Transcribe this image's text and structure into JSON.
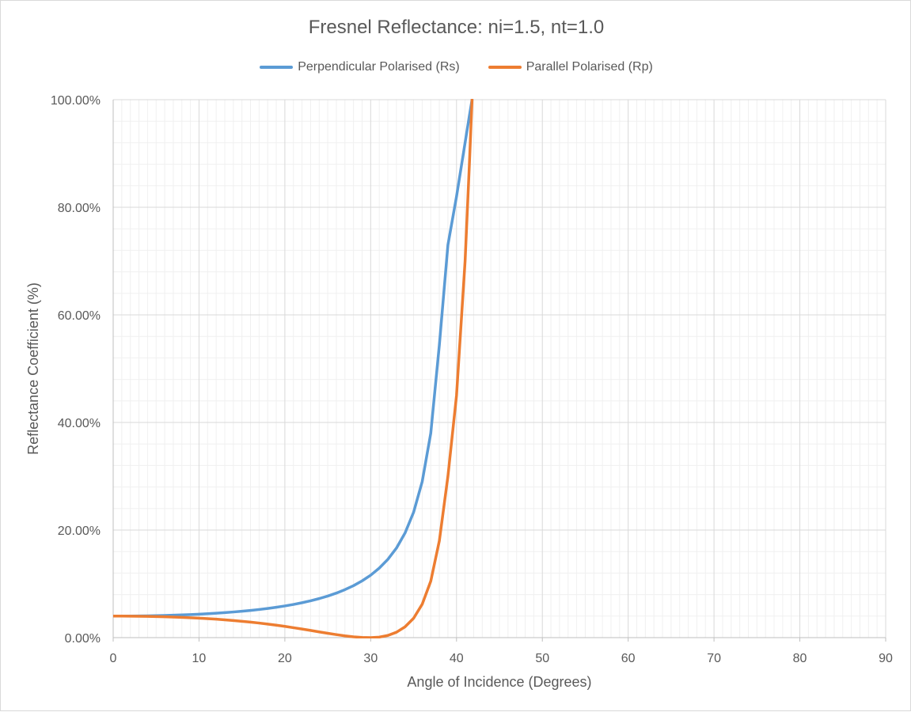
{
  "chart_data": {
    "type": "line",
    "title": "Fresnel Reflectance: ni=1.5, nt=1.0",
    "xlabel": "Angle of Incidence (Degrees)",
    "ylabel": "Reflectance Coefficient (%)",
    "xlim": [
      0,
      90
    ],
    "ylim": [
      0,
      100
    ],
    "x_ticks": [
      0,
      10,
      20,
      30,
      40,
      50,
      60,
      70,
      80,
      90
    ],
    "y_ticks": [
      0,
      20,
      40,
      60,
      80,
      100
    ],
    "y_tick_labels": [
      "0.00%",
      "20.00%",
      "40.00%",
      "60.00%",
      "80.00%",
      "100.00%"
    ],
    "grid": true,
    "legend_position": "top",
    "series": [
      {
        "name": "Perpendicular Polarised (Rs)",
        "color": "#5b9bd5",
        "x": [
          0,
          1,
          2,
          3,
          4,
          5,
          6,
          7,
          8,
          9,
          10,
          11,
          12,
          13,
          14,
          15,
          16,
          17,
          18,
          19,
          20,
          21,
          22,
          23,
          24,
          25,
          26,
          27,
          28,
          29,
          30,
          31,
          32,
          33,
          34,
          35,
          36,
          37,
          38,
          39,
          40,
          41,
          41.5,
          41.81
        ],
        "values": [
          4.0,
          4.0,
          4.01,
          4.03,
          4.05,
          4.08,
          4.12,
          4.17,
          4.22,
          4.29,
          4.36,
          4.44,
          4.54,
          4.65,
          4.77,
          4.91,
          5.06,
          5.23,
          5.43,
          5.65,
          5.89,
          6.17,
          6.49,
          6.85,
          7.26,
          7.73,
          8.28,
          8.92,
          9.66,
          10.55,
          11.61,
          12.92,
          14.55,
          16.64,
          19.44,
          23.31,
          28.98,
          37.99,
          54.38,
          73.0,
          82.0,
          92.0,
          97.0,
          100.0
        ]
      },
      {
        "name": "Parallel Polarised (Rp)",
        "color": "#ed7d31",
        "x": [
          0,
          1,
          2,
          3,
          4,
          5,
          6,
          7,
          8,
          9,
          10,
          11,
          12,
          13,
          14,
          15,
          16,
          17,
          18,
          19,
          20,
          21,
          22,
          23,
          24,
          25,
          26,
          27,
          28,
          29,
          30,
          31,
          32,
          33,
          34,
          35,
          36,
          37,
          38,
          39,
          40,
          41,
          41.5,
          41.81
        ],
        "values": [
          4.0,
          4.0,
          3.99,
          3.97,
          3.95,
          3.92,
          3.88,
          3.83,
          3.77,
          3.7,
          3.62,
          3.53,
          3.43,
          3.31,
          3.18,
          3.04,
          2.88,
          2.71,
          2.52,
          2.31,
          2.09,
          1.85,
          1.6,
          1.34,
          1.07,
          0.81,
          0.56,
          0.33,
          0.15,
          0.04,
          0.0,
          0.1,
          0.4,
          1.0,
          2.0,
          3.6,
          6.2,
          10.5,
          18.0,
          30.0,
          45.0,
          70.0,
          88.0,
          100.0
        ]
      }
    ]
  }
}
